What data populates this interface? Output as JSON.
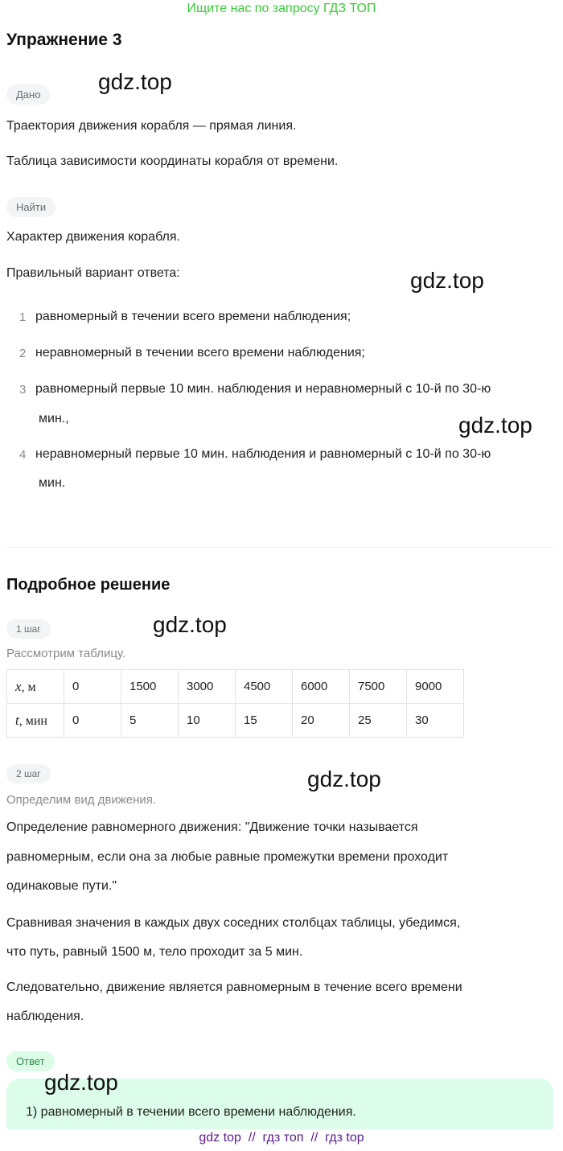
{
  "banner": "Ищите нас по запросу ГДЗ ТОП",
  "title": "Упражнение 3",
  "given_label": "Дано",
  "given": [
    "Траектория движения корабля — прямая линия.",
    "Таблица зависимости координаты корабля от времени."
  ],
  "find_label": "Найти",
  "find": "Характер движения корабля.",
  "options_intro": "Правильный вариант ответа:",
  "options": [
    {
      "n": "1",
      "lines": [
        "равномерный в течении всего времени наблюдения;"
      ]
    },
    {
      "n": "2",
      "lines": [
        "неравномерный в течении всего времени наблюдения;"
      ]
    },
    {
      "n": "3",
      "lines": [
        "равномерный первые 10 мин. наблюдения и неравномерный с 10-й по 30-ю",
        "мин.,"
      ]
    },
    {
      "n": "4",
      "lines": [
        "неравномерный первые 10 мин. наблюдения и равномерный с 10-й по 30-ю",
        "мин."
      ]
    }
  ],
  "solution_title": "Подробное решение",
  "step1": {
    "label": "1 шаг",
    "text": "Рассмотрим таблицу."
  },
  "table": {
    "rows": [
      {
        "var": "x",
        "unit": "м",
        "values": [
          "0",
          "1500",
          "3000",
          "4500",
          "6000",
          "7500",
          "9000"
        ]
      },
      {
        "var": "t",
        "unit": "мин",
        "values": [
          "0",
          "5",
          "10",
          "15",
          "20",
          "25",
          "30"
        ]
      }
    ]
  },
  "step2": {
    "label": "2 шаг",
    "text": "Определим вид движения.",
    "paragraphs": [
      [
        "Определение равномерного движения: \"Движение точки называется",
        "равномерным, если она за любые равные промежутки времени проходит",
        "одинаковые пути.\""
      ],
      [
        "Сравнивая значения в каждых двух соседних столбцах таблицы, убедимся,",
        "что путь, равный 1500 м, тело проходит за 5 мин."
      ],
      [
        "Следовательно, движение является равномерным в течение всего времени",
        "наблюдения."
      ]
    ]
  },
  "answer_label": "Ответ",
  "answer": "1) равномерный в течении всего времени наблюдения.",
  "watermark": "gdz.top",
  "footer": "gdz top  //  гдз топ  //  гдз top",
  "colors": {
    "banner": "#3ec93e",
    "answer_bg": "#dcfde9",
    "footer": "#5b1a8a"
  }
}
